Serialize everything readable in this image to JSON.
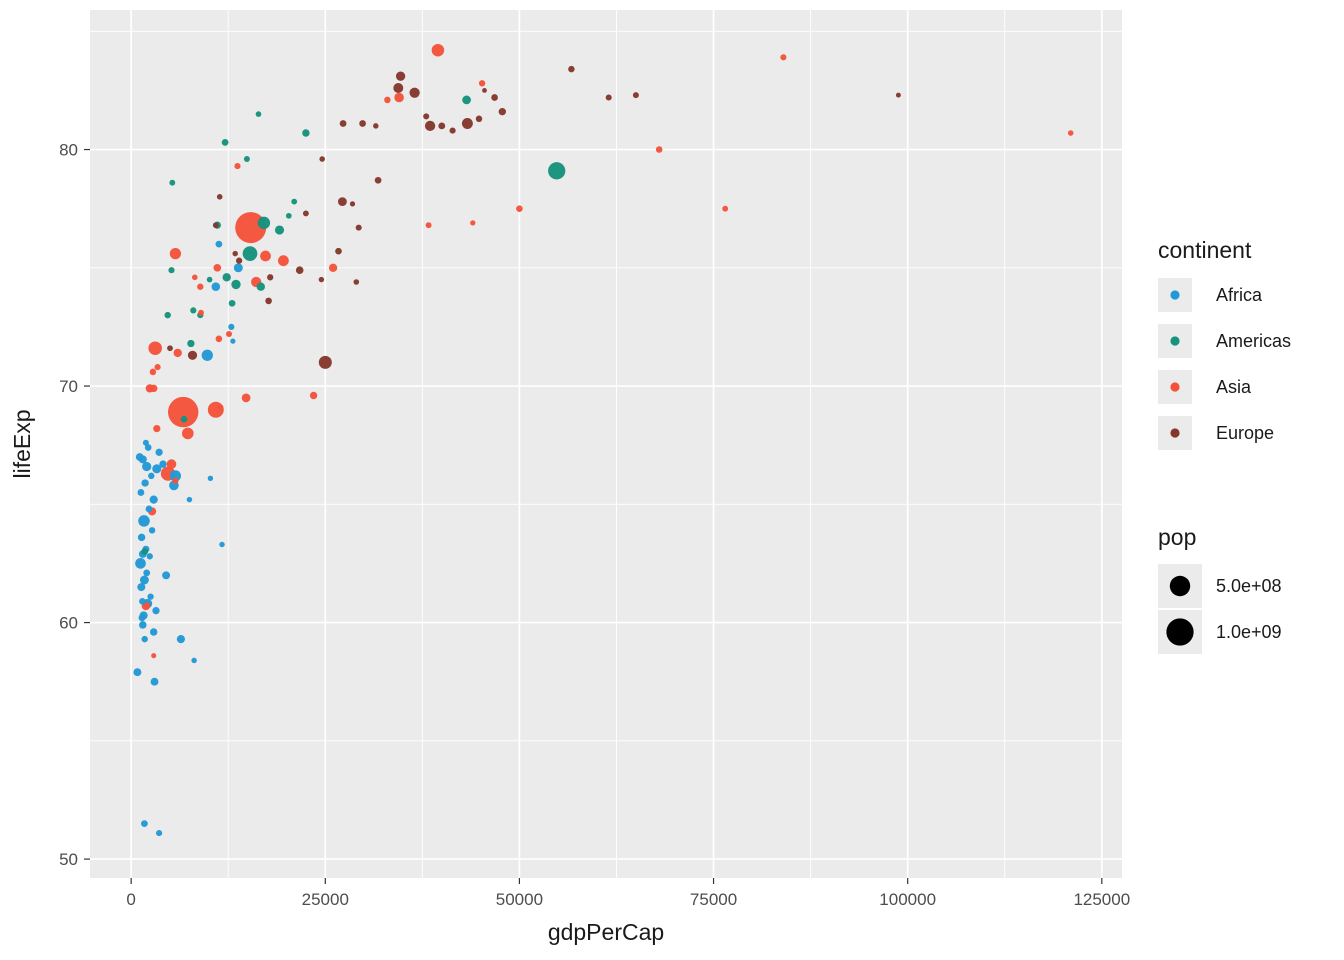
{
  "figure": {
    "background": "#FFFFFF",
    "panel_bg": "#EBEBEB",
    "grid_color": "#FFFFFF",
    "tick_color": "#333333",
    "axis_text_color": "#4D4D4D"
  },
  "chart_data": {
    "type": "scatter",
    "title": "",
    "xlabel": "gdpPerCap",
    "ylabel": "lifeExp",
    "xlim": [
      -5300,
      127600
    ],
    "ylim": [
      49.2,
      85.9
    ],
    "grid": true,
    "legend_position": "right",
    "x_ticks": [
      {
        "value": 0,
        "label": "0"
      },
      {
        "value": 25000,
        "label": "25000"
      },
      {
        "value": 50000,
        "label": "50000"
      },
      {
        "value": 75000,
        "label": "75000"
      },
      {
        "value": 100000,
        "label": "100000"
      },
      {
        "value": 125000,
        "label": "125000"
      }
    ],
    "y_ticks": [
      {
        "value": 50,
        "label": "50"
      },
      {
        "value": 60,
        "label": "60"
      },
      {
        "value": 70,
        "label": "70"
      },
      {
        "value": 80,
        "label": "80"
      }
    ],
    "legend": {
      "color": {
        "title": "continent",
        "entries": [
          {
            "label": "Africa",
            "color": "#2299D6"
          },
          {
            "label": "Americas",
            "color": "#16927D"
          },
          {
            "label": "Asia",
            "color": "#F4533B"
          },
          {
            "label": "Europe",
            "color": "#84382B"
          }
        ]
      },
      "size": {
        "title": "pop",
        "entries": [
          {
            "label": "5.0e+08",
            "value": 500000000.0
          },
          {
            "label": "1.0e+09",
            "value": 1000000000.0
          }
        ]
      }
    },
    "points": [
      {
        "x": 800,
        "y": 57.9,
        "pop": 24000000.0,
        "continent": "Africa"
      },
      {
        "x": 1700,
        "y": 51.5,
        "pop": 11000000.0,
        "continent": "Africa"
      },
      {
        "x": 3600,
        "y": 51.1,
        "pop": 6000000.0,
        "continent": "Africa"
      },
      {
        "x": 8100,
        "y": 58.4,
        "pop": 2200000.0,
        "continent": "Africa"
      },
      {
        "x": 2900,
        "y": 59.6,
        "pop": 18000000.0,
        "continent": "Africa"
      },
      {
        "x": 1500,
        "y": 59.9,
        "pop": 19000000.0,
        "continent": "Africa"
      },
      {
        "x": 1400,
        "y": 60.2,
        "pop": 12000000.0,
        "continent": "Africa"
      },
      {
        "x": 1450,
        "y": 60.9,
        "pop": 10000000.0,
        "continent": "Africa"
      },
      {
        "x": 1600,
        "y": 60.3,
        "pop": 28000000.0,
        "continent": "Africa"
      },
      {
        "x": 1750,
        "y": 59.3,
        "pop": 8000000.0,
        "continent": "Africa"
      },
      {
        "x": 2100,
        "y": 60.8,
        "pop": 48000000.0,
        "continent": "Africa"
      },
      {
        "x": 2500,
        "y": 61.1,
        "pop": 7000000.0,
        "continent": "Africa"
      },
      {
        "x": 1300,
        "y": 61.5,
        "pop": 25000000.0,
        "continent": "Africa"
      },
      {
        "x": 1700,
        "y": 61.8,
        "pop": 39000000.0,
        "continent": "Africa"
      },
      {
        "x": 2000,
        "y": 62.1,
        "pop": 11000000.0,
        "continent": "Africa"
      },
      {
        "x": 1200,
        "y": 62.5,
        "pop": 77000000.0,
        "continent": "Africa"
      },
      {
        "x": 1500,
        "y": 62.9,
        "pop": 23000000.0,
        "continent": "Africa"
      },
      {
        "x": 1900,
        "y": 63.1,
        "pop": 13000000.0,
        "continent": "Africa"
      },
      {
        "x": 1350,
        "y": 63.6,
        "pop": 18000000.0,
        "continent": "Africa"
      },
      {
        "x": 2700,
        "y": 63.9,
        "pop": 8000000.0,
        "continent": "Africa"
      },
      {
        "x": 11700,
        "y": 63.3,
        "pop": 2300000.0,
        "continent": "Africa"
      },
      {
        "x": 1650,
        "y": 64.3,
        "pop": 99000000.0,
        "continent": "Africa"
      },
      {
        "x": 2300,
        "y": 64.8,
        "pop": 12000000.0,
        "continent": "Africa"
      },
      {
        "x": 2900,
        "y": 65.2,
        "pop": 28000000.0,
        "continent": "Africa"
      },
      {
        "x": 1250,
        "y": 65.5,
        "pop": 12000000.0,
        "continent": "Africa"
      },
      {
        "x": 1800,
        "y": 65.9,
        "pop": 17000000.0,
        "continent": "Africa"
      },
      {
        "x": 2600,
        "y": 66.2,
        "pop": 8000000.0,
        "continent": "Africa"
      },
      {
        "x": 3300,
        "y": 66.5,
        "pop": 43000000.0,
        "continent": "Africa"
      },
      {
        "x": 5700,
        "y": 66.2,
        "pop": 90000000.0,
        "continent": "Africa"
      },
      {
        "x": 2000,
        "y": 66.6,
        "pop": 46000000.0,
        "continent": "Africa"
      },
      {
        "x": 1500,
        "y": 66.9,
        "pop": 26000000.0,
        "continent": "Africa"
      },
      {
        "x": 3600,
        "y": 67.2,
        "pop": 16000000.0,
        "continent": "Africa"
      },
      {
        "x": 2200,
        "y": 67.4,
        "pop": 10000000.0,
        "continent": "Africa"
      },
      {
        "x": 1100,
        "y": 67.0,
        "pop": 21000000.0,
        "continent": "Africa"
      },
      {
        "x": 5500,
        "y": 65.8,
        "pop": 55000000.0,
        "continent": "Africa"
      },
      {
        "x": 10200,
        "y": 66.1,
        "pop": 2000000.0,
        "continent": "Africa"
      },
      {
        "x": 6400,
        "y": 59.3,
        "pop": 28000000.0,
        "continent": "Africa"
      },
      {
        "x": 4500,
        "y": 62.0,
        "pop": 24000000.0,
        "continent": "Africa"
      },
      {
        "x": 3200,
        "y": 60.5,
        "pop": 16000000.0,
        "continent": "Africa"
      },
      {
        "x": 13800,
        "y": 75.0,
        "pop": 40000000.0,
        "continent": "Africa"
      },
      {
        "x": 10900,
        "y": 74.2,
        "pop": 34000000.0,
        "continent": "Africa"
      },
      {
        "x": 11300,
        "y": 76.0,
        "pop": 11000000.0,
        "continent": "Africa"
      },
      {
        "x": 12900,
        "y": 72.5,
        "pop": 6200000.0,
        "continent": "Africa"
      },
      {
        "x": 9800,
        "y": 71.3,
        "pop": 92000000.0,
        "continent": "Africa"
      },
      {
        "x": 13100,
        "y": 71.9,
        "pop": 1300000.0,
        "continent": "Africa"
      },
      {
        "x": 4100,
        "y": 66.7,
        "pop": 18000000.0,
        "continent": "Africa"
      },
      {
        "x": 2400,
        "y": 62.8,
        "pop": 7000000.0,
        "continent": "Africa"
      },
      {
        "x": 1900,
        "y": 67.6,
        "pop": 5000000.0,
        "continent": "Africa"
      },
      {
        "x": 7500,
        "y": 65.2,
        "pop": 2500000.0,
        "continent": "Africa"
      },
      {
        "x": 3000,
        "y": 57.5,
        "pop": 23000000.0,
        "continent": "Africa"
      },
      {
        "x": 54800,
        "y": 79.1,
        "pop": 321000000.0,
        "continent": "Americas"
      },
      {
        "x": 43200,
        "y": 82.1,
        "pop": 36000000.0,
        "continent": "Americas"
      },
      {
        "x": 15300,
        "y": 75.6,
        "pop": 205000000.0,
        "continent": "Americas"
      },
      {
        "x": 17100,
        "y": 76.9,
        "pop": 125000000.0,
        "continent": "Americas"
      },
      {
        "x": 22500,
        "y": 80.7,
        "pop": 18000000.0,
        "continent": "Americas"
      },
      {
        "x": 12100,
        "y": 80.3,
        "pop": 11400000.0,
        "continent": "Americas"
      },
      {
        "x": 14900,
        "y": 79.6,
        "pop": 4800000.0,
        "continent": "Americas"
      },
      {
        "x": 21000,
        "y": 77.8,
        "pop": 3900000.0,
        "continent": "Americas"
      },
      {
        "x": 19100,
        "y": 76.6,
        "pop": 43000000.0,
        "continent": "Americas"
      },
      {
        "x": 20300,
        "y": 77.2,
        "pop": 3400000.0,
        "continent": "Americas"
      },
      {
        "x": 13500,
        "y": 74.3,
        "pop": 48000000.0,
        "continent": "Americas"
      },
      {
        "x": 12300,
        "y": 74.6,
        "pop": 31000000.0,
        "continent": "Americas"
      },
      {
        "x": 16700,
        "y": 74.2,
        "pop": 31000000.0,
        "continent": "Americas"
      },
      {
        "x": 11100,
        "y": 76.8,
        "pop": 16000000.0,
        "continent": "Americas"
      },
      {
        "x": 8900,
        "y": 73.0,
        "pop": 6600000.0,
        "continent": "Americas"
      },
      {
        "x": 6800,
        "y": 68.6,
        "pop": 10700000.0,
        "continent": "Americas"
      },
      {
        "x": 8000,
        "y": 73.2,
        "pop": 6100000.0,
        "continent": "Americas"
      },
      {
        "x": 7700,
        "y": 71.8,
        "pop": 16300000.0,
        "continent": "Americas"
      },
      {
        "x": 4700,
        "y": 73.0,
        "pop": 8100000.0,
        "continent": "Americas"
      },
      {
        "x": 5200,
        "y": 74.9,
        "pop": 6100000.0,
        "continent": "Americas"
      },
      {
        "x": 13000,
        "y": 73.5,
        "pop": 10500000.0,
        "continent": "Americas"
      },
      {
        "x": 1750,
        "y": 63.0,
        "pop": 10700000.0,
        "continent": "Americas"
      },
      {
        "x": 10100,
        "y": 74.5,
        "pop": 2900000.0,
        "continent": "Americas"
      },
      {
        "x": 5300,
        "y": 78.6,
        "pop": 4000000.0,
        "continent": "Americas"
      },
      {
        "x": 16400,
        "y": 81.5,
        "pop": 3000000.0,
        "continent": "Americas"
      },
      {
        "x": 15400,
        "y": 76.7,
        "pop": 1371000000.0,
        "continent": "Asia"
      },
      {
        "x": 6700,
        "y": 68.9,
        "pop": 1311000000.0,
        "continent": "Asia"
      },
      {
        "x": 39500,
        "y": 84.2,
        "pop": 127000000.0,
        "continent": "Asia"
      },
      {
        "x": 84000,
        "y": 83.9,
        "pop": 5500000.0,
        "continent": "Asia"
      },
      {
        "x": 121000,
        "y": 80.7,
        "pop": 2400000.0,
        "continent": "Asia"
      },
      {
        "x": 68000,
        "y": 80.0,
        "pop": 9000000.0,
        "continent": "Asia"
      },
      {
        "x": 76500,
        "y": 77.5,
        "pop": 3900000.0,
        "continent": "Asia"
      },
      {
        "x": 50000,
        "y": 77.5,
        "pop": 9200000.0,
        "continent": "Asia"
      },
      {
        "x": 34500,
        "y": 82.2,
        "pop": 51000000.0,
        "continent": "Asia"
      },
      {
        "x": 45200,
        "y": 82.8,
        "pop": 7300000.0,
        "continent": "Asia"
      },
      {
        "x": 26000,
        "y": 75.0,
        "pop": 30300000.0,
        "continent": "Asia"
      },
      {
        "x": 16100,
        "y": 74.4,
        "pop": 68000000.0,
        "continent": "Asia"
      },
      {
        "x": 10900,
        "y": 69.0,
        "pop": 258000000.0,
        "continent": "Asia"
      },
      {
        "x": 7300,
        "y": 68.0,
        "pop": 101000000.0,
        "continent": "Asia"
      },
      {
        "x": 5700,
        "y": 75.6,
        "pop": 92000000.0,
        "continent": "Asia"
      },
      {
        "x": 4750,
        "y": 66.3,
        "pop": 189000000.0,
        "continent": "Asia"
      },
      {
        "x": 3100,
        "y": 71.6,
        "pop": 161000000.0,
        "continent": "Asia"
      },
      {
        "x": 5200,
        "y": 66.7,
        "pop": 52000000.0,
        "continent": "Asia"
      },
      {
        "x": 3300,
        "y": 68.2,
        "pop": 16000000.0,
        "continent": "Asia"
      },
      {
        "x": 5700,
        "y": 66.0,
        "pop": 6700000.0,
        "continent": "Asia"
      },
      {
        "x": 2400,
        "y": 69.9,
        "pop": 29000000.0,
        "continent": "Asia"
      },
      {
        "x": 2800,
        "y": 70.6,
        "pop": 8500000.0,
        "continent": "Asia"
      },
      {
        "x": 3400,
        "y": 70.8,
        "pop": 6000000.0,
        "continent": "Asia"
      },
      {
        "x": 6000,
        "y": 71.4,
        "pop": 31000000.0,
        "continent": "Asia"
      },
      {
        "x": 2700,
        "y": 64.7,
        "pop": 27000000.0,
        "continent": "Asia"
      },
      {
        "x": 1900,
        "y": 60.7,
        "pop": 32500000.0,
        "continent": "Asia"
      },
      {
        "x": 2900,
        "y": 58.6,
        "pop": 900000.0,
        "continent": "Asia"
      },
      {
        "x": 14800,
        "y": 69.5,
        "pop": 36400000.0,
        "continent": "Asia"
      },
      {
        "x": 17300,
        "y": 75.5,
        "pop": 79000000.0,
        "continent": "Asia"
      },
      {
        "x": 44000,
        "y": 76.9,
        "pop": 1400000.0,
        "continent": "Asia"
      },
      {
        "x": 38300,
        "y": 76.8,
        "pop": 4500000.0,
        "continent": "Asia"
      },
      {
        "x": 33000,
        "y": 82.1,
        "pop": 8400000.0,
        "continent": "Asia"
      },
      {
        "x": 19600,
        "y": 75.3,
        "pop": 78700000.0,
        "continent": "Asia"
      },
      {
        "x": 11100,
        "y": 75.0,
        "pop": 21000000.0,
        "continent": "Asia"
      },
      {
        "x": 23500,
        "y": 69.6,
        "pop": 17500000.0,
        "continent": "Asia"
      },
      {
        "x": 11300,
        "y": 72.0,
        "pop": 9600000.0,
        "continent": "Asia"
      },
      {
        "x": 12600,
        "y": 72.2,
        "pop": 5400000.0,
        "continent": "Asia"
      },
      {
        "x": 11500,
        "y": 69.1,
        "pop": 3000000.0,
        "continent": "Asia"
      },
      {
        "x": 8900,
        "y": 74.2,
        "pop": 7600000.0,
        "continent": "Asia"
      },
      {
        "x": 13700,
        "y": 79.3,
        "pop": 5900000.0,
        "continent": "Asia"
      },
      {
        "x": 9000,
        "y": 73.1,
        "pop": 3700000.0,
        "continent": "Asia"
      },
      {
        "x": 8200,
        "y": 74.6,
        "pop": 2900000.0,
        "continent": "Asia"
      },
      {
        "x": 2900,
        "y": 69.9,
        "pop": 18500000.0,
        "continent": "Asia"
      },
      {
        "x": 98800,
        "y": 82.3,
        "pop": 570000.0,
        "continent": "Europe"
      },
      {
        "x": 56700,
        "y": 83.4,
        "pop": 8300000.0,
        "continent": "Europe"
      },
      {
        "x": 61500,
        "y": 82.2,
        "pop": 5200000.0,
        "continent": "Europe"
      },
      {
        "x": 65000,
        "y": 82.3,
        "pop": 4700000.0,
        "continent": "Europe"
      },
      {
        "x": 47800,
        "y": 81.6,
        "pop": 17000000.0,
        "continent": "Europe"
      },
      {
        "x": 44800,
        "y": 81.3,
        "pop": 8600000.0,
        "continent": "Europe"
      },
      {
        "x": 43300,
        "y": 81.1,
        "pop": 81700000.0,
        "continent": "Europe"
      },
      {
        "x": 46800,
        "y": 82.2,
        "pop": 9800000.0,
        "continent": "Europe"
      },
      {
        "x": 41400,
        "y": 80.8,
        "pop": 5700000.0,
        "continent": "Europe"
      },
      {
        "x": 40000,
        "y": 81.0,
        "pop": 11300000.0,
        "continent": "Europe"
      },
      {
        "x": 38000,
        "y": 81.4,
        "pop": 5500000.0,
        "continent": "Europe"
      },
      {
        "x": 45500,
        "y": 82.5,
        "pop": 330000.0,
        "continent": "Europe"
      },
      {
        "x": 36500,
        "y": 82.4,
        "pop": 66500000.0,
        "continent": "Europe"
      },
      {
        "x": 38500,
        "y": 81.0,
        "pop": 65000000.0,
        "continent": "Europe"
      },
      {
        "x": 34400,
        "y": 82.6,
        "pop": 60700000.0,
        "continent": "Europe"
      },
      {
        "x": 34700,
        "y": 83.1,
        "pop": 46400000.0,
        "continent": "Europe"
      },
      {
        "x": 31500,
        "y": 81.0,
        "pop": 2100000.0,
        "continent": "Europe"
      },
      {
        "x": 31800,
        "y": 78.7,
        "pop": 10500000.0,
        "continent": "Europe"
      },
      {
        "x": 29800,
        "y": 81.1,
        "pop": 10300000.0,
        "continent": "Europe"
      },
      {
        "x": 27300,
        "y": 81.1,
        "pop": 10800000.0,
        "continent": "Europe"
      },
      {
        "x": 28500,
        "y": 77.7,
        "pop": 1300000.0,
        "continent": "Europe"
      },
      {
        "x": 29300,
        "y": 76.7,
        "pop": 5400000.0,
        "continent": "Europe"
      },
      {
        "x": 29000,
        "y": 74.4,
        "pop": 2900000.0,
        "continent": "Europe"
      },
      {
        "x": 27200,
        "y": 77.8,
        "pop": 38000000.0,
        "continent": "Europe"
      },
      {
        "x": 26700,
        "y": 75.7,
        "pop": 9800000.0,
        "continent": "Europe"
      },
      {
        "x": 24500,
        "y": 74.5,
        "pop": 2000000.0,
        "continent": "Europe"
      },
      {
        "x": 22500,
        "y": 77.3,
        "pop": 4200000.0,
        "continent": "Europe"
      },
      {
        "x": 25000,
        "y": 71.0,
        "pop": 144000000.0,
        "continent": "Europe"
      },
      {
        "x": 21700,
        "y": 74.9,
        "pop": 19800000.0,
        "continent": "Europe"
      },
      {
        "x": 17900,
        "y": 74.6,
        "pop": 7200000.0,
        "continent": "Europe"
      },
      {
        "x": 17700,
        "y": 73.6,
        "pop": 9500000.0,
        "continent": "Europe"
      },
      {
        "x": 13900,
        "y": 75.3,
        "pop": 7100000.0,
        "continent": "Europe"
      },
      {
        "x": 10900,
        "y": 76.8,
        "pop": 3500000.0,
        "continent": "Europe"
      },
      {
        "x": 11400,
        "y": 78.0,
        "pop": 2900000.0,
        "continent": "Europe"
      },
      {
        "x": 13400,
        "y": 75.6,
        "pop": 2100000.0,
        "continent": "Europe"
      },
      {
        "x": 7900,
        "y": 71.3,
        "pop": 45000000.0,
        "continent": "Europe"
      },
      {
        "x": 5000,
        "y": 71.6,
        "pop": 3600000.0,
        "continent": "Europe"
      },
      {
        "x": 24600,
        "y": 79.6,
        "pop": 2600000.0,
        "continent": "Europe"
      }
    ]
  }
}
